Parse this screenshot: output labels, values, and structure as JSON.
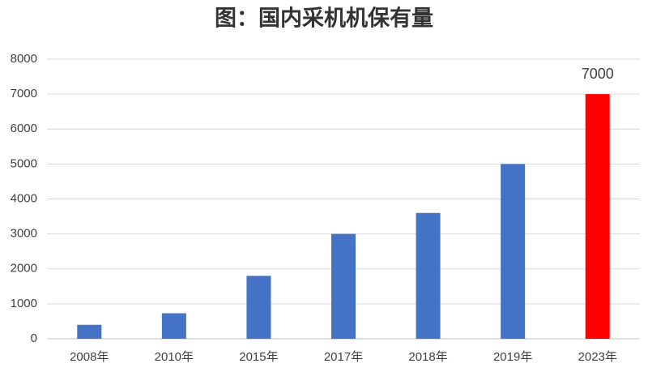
{
  "chart_data": {
    "type": "bar",
    "title": "图：国内采机机保有量",
    "categories": [
      "2008年",
      "2010年",
      "2015年",
      "2017年",
      "2018年",
      "2019年",
      "2023年"
    ],
    "values": [
      400,
      730,
      1800,
      3000,
      3600,
      5000,
      7000
    ],
    "value_labels": [
      null,
      null,
      null,
      null,
      null,
      null,
      "7000"
    ],
    "colors": [
      "#4472c4",
      "#4472c4",
      "#4472c4",
      "#4472c4",
      "#4472c4",
      "#4472c4",
      "#ff0000"
    ],
    "ylim": [
      0,
      8000
    ],
    "yticks": [
      0,
      1000,
      2000,
      3000,
      4000,
      5000,
      6000,
      7000,
      8000
    ],
    "grid": true
  }
}
